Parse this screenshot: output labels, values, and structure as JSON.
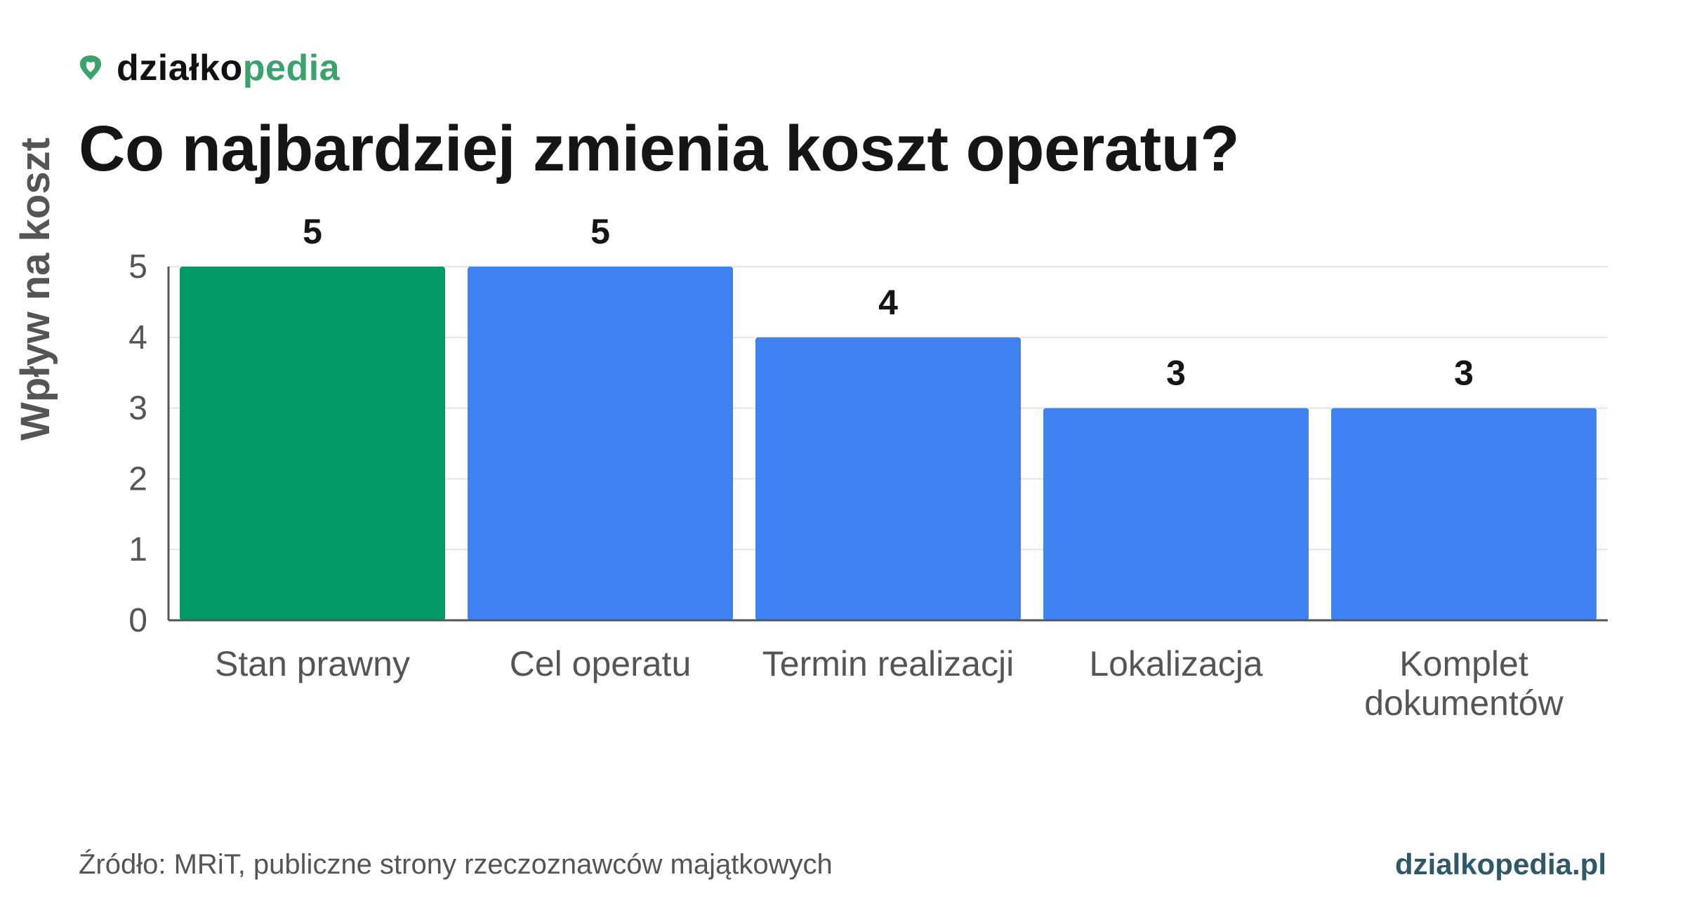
{
  "brand": {
    "name_dark": "działko",
    "name_green": "pedia",
    "icon": "map-pin-leaf-icon",
    "color_dark": "#111111",
    "color_green": "#3aa36b"
  },
  "chart_data": {
    "type": "bar",
    "title": "Co najbardziej zmienia koszt operatu?",
    "xlabel": "",
    "ylabel": "Wpływ na koszt",
    "categories": [
      [
        "Stan prawny"
      ],
      [
        "Cel operatu"
      ],
      [
        "Termin realizacji"
      ],
      [
        "Lokalizacja"
      ],
      [
        "Komplet",
        "dokumentów"
      ]
    ],
    "values": [
      5,
      5,
      4,
      3,
      3
    ],
    "bar_colors": [
      "#029966",
      "#3d82f0",
      "#3d82f0",
      "#3d82f0",
      "#3d82f0"
    ],
    "ylim": [
      0,
      5
    ],
    "yticks": [
      0,
      1,
      2,
      3,
      4,
      5
    ],
    "grid": true,
    "data_labels": true
  },
  "footer": {
    "source": "Źródło: MRiT, publiczne strony rzeczoznawców majątkowych",
    "site": "dzialkopedia.pl"
  }
}
